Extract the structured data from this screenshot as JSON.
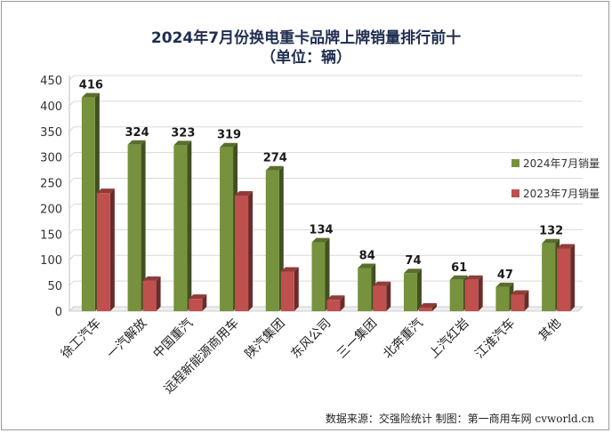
{
  "chart_data": {
    "type": "bar",
    "title": "2024年7月份换电重卡品牌上牌销量排行前十",
    "subtitle": "（单位：辆）",
    "categories": [
      "徐工汽车",
      "一汽解放",
      "中国重汽",
      "远程新能源商用车",
      "陕汽集团",
      "东风公司",
      "三一集团",
      "北奔重汽",
      "上汽红岩",
      "江淮汽车",
      "其他"
    ],
    "series": [
      {
        "name": "2024年7月销量",
        "color": "#76923c",
        "values": [
          416,
          324,
          323,
          319,
          274,
          134,
          84,
          74,
          61,
          47,
          132
        ]
      },
      {
        "name": "2023年7月销量",
        "color": "#c0504d",
        "values": [
          230,
          59,
          24,
          225,
          77,
          22,
          49,
          7,
          61,
          32,
          122
        ]
      }
    ],
    "data_labels": [
      "416",
      "324",
      "323",
      "319",
      "274",
      "134",
      "84",
      "74",
      "61",
      "47",
      "132"
    ],
    "ylim": [
      0,
      450
    ],
    "yticks": [
      "0",
      "50",
      "100",
      "150",
      "200",
      "250",
      "300",
      "350",
      "400",
      "450"
    ],
    "grid": true,
    "legend_position": "right"
  },
  "footer": "数据来源：交强险统计  制图：第一商用车网 cvworld.cn"
}
